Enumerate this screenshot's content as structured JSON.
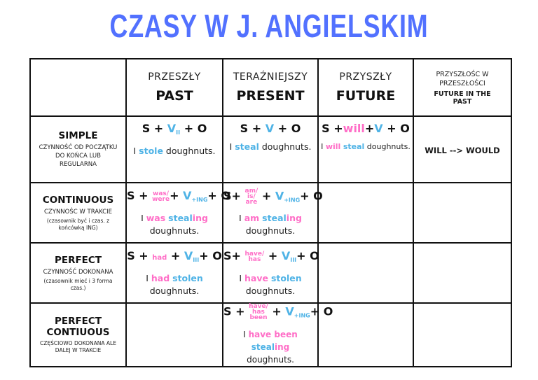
{
  "title": "CZASY W J. ANGIELSKIM",
  "columns": [
    {
      "pl": "PRZESZŁY",
      "en": "PAST"
    },
    {
      "pl": "TERAŹNIEJSZY",
      "en": "PRESENT"
    },
    {
      "pl": "PRZYSZŁY",
      "en": "FUTURE"
    },
    {
      "pl": "PRZYSZŁOŚC W PRZESZŁOŚCI",
      "en": "FUTURE IN THE PAST"
    }
  ],
  "rows": {
    "simple": {
      "name": "SIMPLE",
      "desc": "CZYNNOŚĆ OD POCZĄTKU DO KOŃCA LUB REGULARNA",
      "past": {
        "verb_sub": "II",
        "ex_pre": "I",
        "ex_verb": "stole",
        "ex_post": "doughnuts."
      },
      "present": {
        "ex_pre": "I",
        "ex_verb": "steal",
        "ex_post": "doughnuts."
      },
      "future": {
        "aux": "will",
        "ex_pre": "I",
        "ex_aux": "will",
        "ex_verb": "steal",
        "ex_post": "doughnuts."
      },
      "fitp": "WILL --> WOULD"
    },
    "continuous": {
      "name": "CONTINUOUS",
      "desc": "CZYNNOŚC W TRAKCIE",
      "note": "(czasownik być i czas. z końcówką ING)",
      "past": {
        "aux_a": "was/",
        "aux_b": "were",
        "verb_sub": "+ING",
        "ex_pre": "I",
        "ex_aux": "was",
        "ex_verb": "steal",
        "ex_tail": "ing",
        "ex_post": "doughnuts."
      },
      "present": {
        "aux_a": "am/",
        "aux_b": "is/",
        "aux_c": "are",
        "verb_sub": "+ING",
        "ex_pre": "I",
        "ex_aux": "am",
        "ex_verb": "steal",
        "ex_tail": "ing",
        "ex_post": "doughnuts."
      }
    },
    "perfect": {
      "name": "PERFECT",
      "desc": "CZYNNOŚĆ DOKONANA",
      "note": "(czasownik mieć i 3 forma czas.)",
      "past": {
        "aux": "had",
        "verb_sub": "III",
        "ex_pre": "I",
        "ex_aux": "had",
        "ex_verb": "stolen",
        "ex_post": "doughnuts."
      },
      "present": {
        "aux_a": "have/",
        "aux_b": "has",
        "verb_sub": "III",
        "ex_pre": "I",
        "ex_aux": "have",
        "ex_verb": "stolen",
        "ex_post": "doughnuts."
      }
    },
    "perfect_continuous": {
      "name_a": "PERFECT",
      "name_b": "CONTIUOUS",
      "desc": "CZĘŚCIOWO DOKONANA ALE DALEJ W TRAKCIE",
      "present": {
        "aux_a": "have/",
        "aux_b": "has",
        "aux_c": "been",
        "verb_sub": "+ING",
        "ex_pre": "I",
        "ex_aux": "have been",
        "ex_verb": "steal",
        "ex_tail": "ing",
        "ex_post": "doughnuts."
      }
    }
  },
  "formula": {
    "s": "S",
    "v": "V",
    "o": "O",
    "plus": "+"
  },
  "colors": {
    "title": "#5271ff",
    "verb": "#4fb3e6",
    "aux": "#ff6ec7",
    "border": "#111111"
  }
}
